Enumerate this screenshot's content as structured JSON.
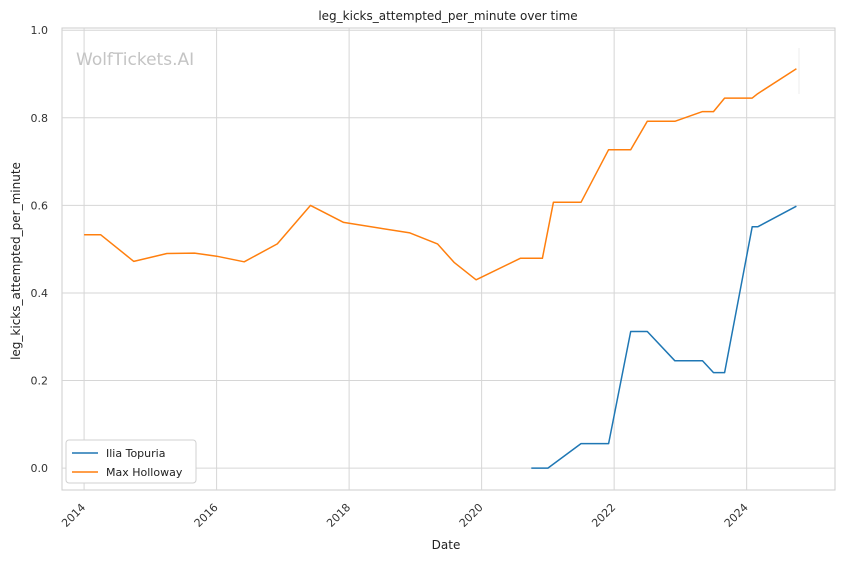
{
  "chart_data": {
    "type": "line",
    "title": "leg_kicks_attempted_per_minute over time",
    "xlabel": "Date",
    "ylabel": "leg_kicks_attempted_per_minute",
    "watermark": "WolfTickets.AI",
    "x_ticks": [
      "2014",
      "2016",
      "2018",
      "2020",
      "2022",
      "2024"
    ],
    "y_ticks": [
      "0.0",
      "0.2",
      "0.4",
      "0.6",
      "0.8",
      "1.0"
    ],
    "xlim": [
      "2013-09",
      "2025-05"
    ],
    "ylim": [
      -0.05,
      1.005
    ],
    "grid": true,
    "legend_position": "lower-left",
    "series": [
      {
        "name": "Ilia Topuria",
        "color": "#1f77b4",
        "points": [
          [
            "2020-10",
            0.0
          ],
          [
            "2021-01",
            0.0
          ],
          [
            "2021-07",
            0.056
          ],
          [
            "2021-12",
            0.056
          ],
          [
            "2022-04",
            0.312
          ],
          [
            "2022-07",
            0.312
          ],
          [
            "2022-12",
            0.245
          ],
          [
            "2023-05",
            0.245
          ],
          [
            "2023-07",
            0.218
          ],
          [
            "2023-09",
            0.218
          ],
          [
            "2024-02",
            0.551
          ],
          [
            "2024-03",
            0.551
          ],
          [
            "2024-10",
            0.598
          ]
        ]
      },
      {
        "name": "Max Holloway",
        "color": "#ff7f0e",
        "points": [
          [
            "2014-01",
            0.533
          ],
          [
            "2014-04",
            0.533
          ],
          [
            "2014-10",
            0.472
          ],
          [
            "2015-04",
            0.49
          ],
          [
            "2015-09",
            0.491
          ],
          [
            "2016-01",
            0.484
          ],
          [
            "2016-06",
            0.471
          ],
          [
            "2016-12",
            0.512
          ],
          [
            "2017-06",
            0.6
          ],
          [
            "2017-12",
            0.561
          ],
          [
            "2018-12",
            0.537
          ],
          [
            "2019-05",
            0.512
          ],
          [
            "2019-08",
            0.47
          ],
          [
            "2019-12",
            0.43
          ],
          [
            "2020-08",
            0.479
          ],
          [
            "2020-12",
            0.479
          ],
          [
            "2021-02",
            0.607
          ],
          [
            "2021-07",
            0.607
          ],
          [
            "2021-12",
            0.727
          ],
          [
            "2022-04",
            0.727
          ],
          [
            "2022-07",
            0.792
          ],
          [
            "2022-12",
            0.792
          ],
          [
            "2023-05",
            0.814
          ],
          [
            "2023-07",
            0.814
          ],
          [
            "2023-09",
            0.845
          ],
          [
            "2024-02",
            0.845
          ],
          [
            "2024-03",
            0.855
          ],
          [
            "2024-10",
            0.912
          ]
        ]
      }
    ]
  }
}
